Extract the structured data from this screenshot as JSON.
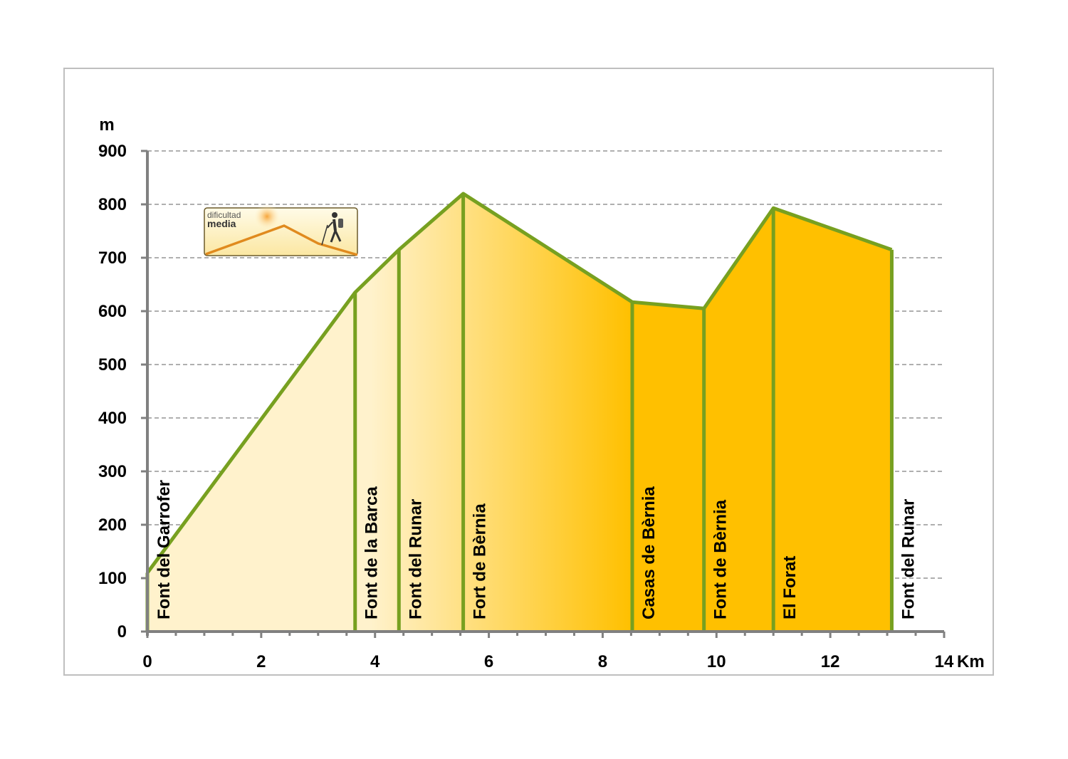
{
  "chart_data": {
    "type": "area",
    "title": "",
    "xlabel": "Km",
    "ylabel": "m",
    "xlim": [
      0,
      14
    ],
    "ylim": [
      0,
      900
    ],
    "x_ticks": [
      0,
      2,
      4,
      6,
      8,
      10,
      12,
      14
    ],
    "y_ticks": [
      0,
      100,
      200,
      300,
      400,
      500,
      600,
      700,
      800,
      900
    ],
    "grid": "horizontal dashed",
    "legend": "none",
    "series": [
      {
        "points": [
          {
            "x": 0,
            "y": 110,
            "label": "Font del Garrofer"
          },
          {
            "x": 3.65,
            "y": 635,
            "label": "Font de la Barca"
          },
          {
            "x": 4.42,
            "y": 715,
            "label": "Font del Runar"
          },
          {
            "x": 5.55,
            "y": 820,
            "label": "Fort de Bèrnia"
          },
          {
            "x": 8.52,
            "y": 617,
            "label": "Casas de Bèrnia"
          },
          {
            "x": 9.78,
            "y": 605,
            "label": "Font de Bèrnia"
          },
          {
            "x": 11.0,
            "y": 793,
            "label": "El Forat"
          },
          {
            "x": 13.08,
            "y": 715,
            "label": "Font del Runar"
          }
        ]
      }
    ],
    "colors": {
      "line": "#77A020",
      "fill_start": "#FFF2CC",
      "fill_end": "#FFC000",
      "grid": "#7F7F7F",
      "axis": "#808080",
      "frame": "#BFBFBF"
    }
  },
  "difficulty_badge": {
    "line1": "dificultad",
    "line2": "media",
    "icon": "hiker-icon"
  }
}
